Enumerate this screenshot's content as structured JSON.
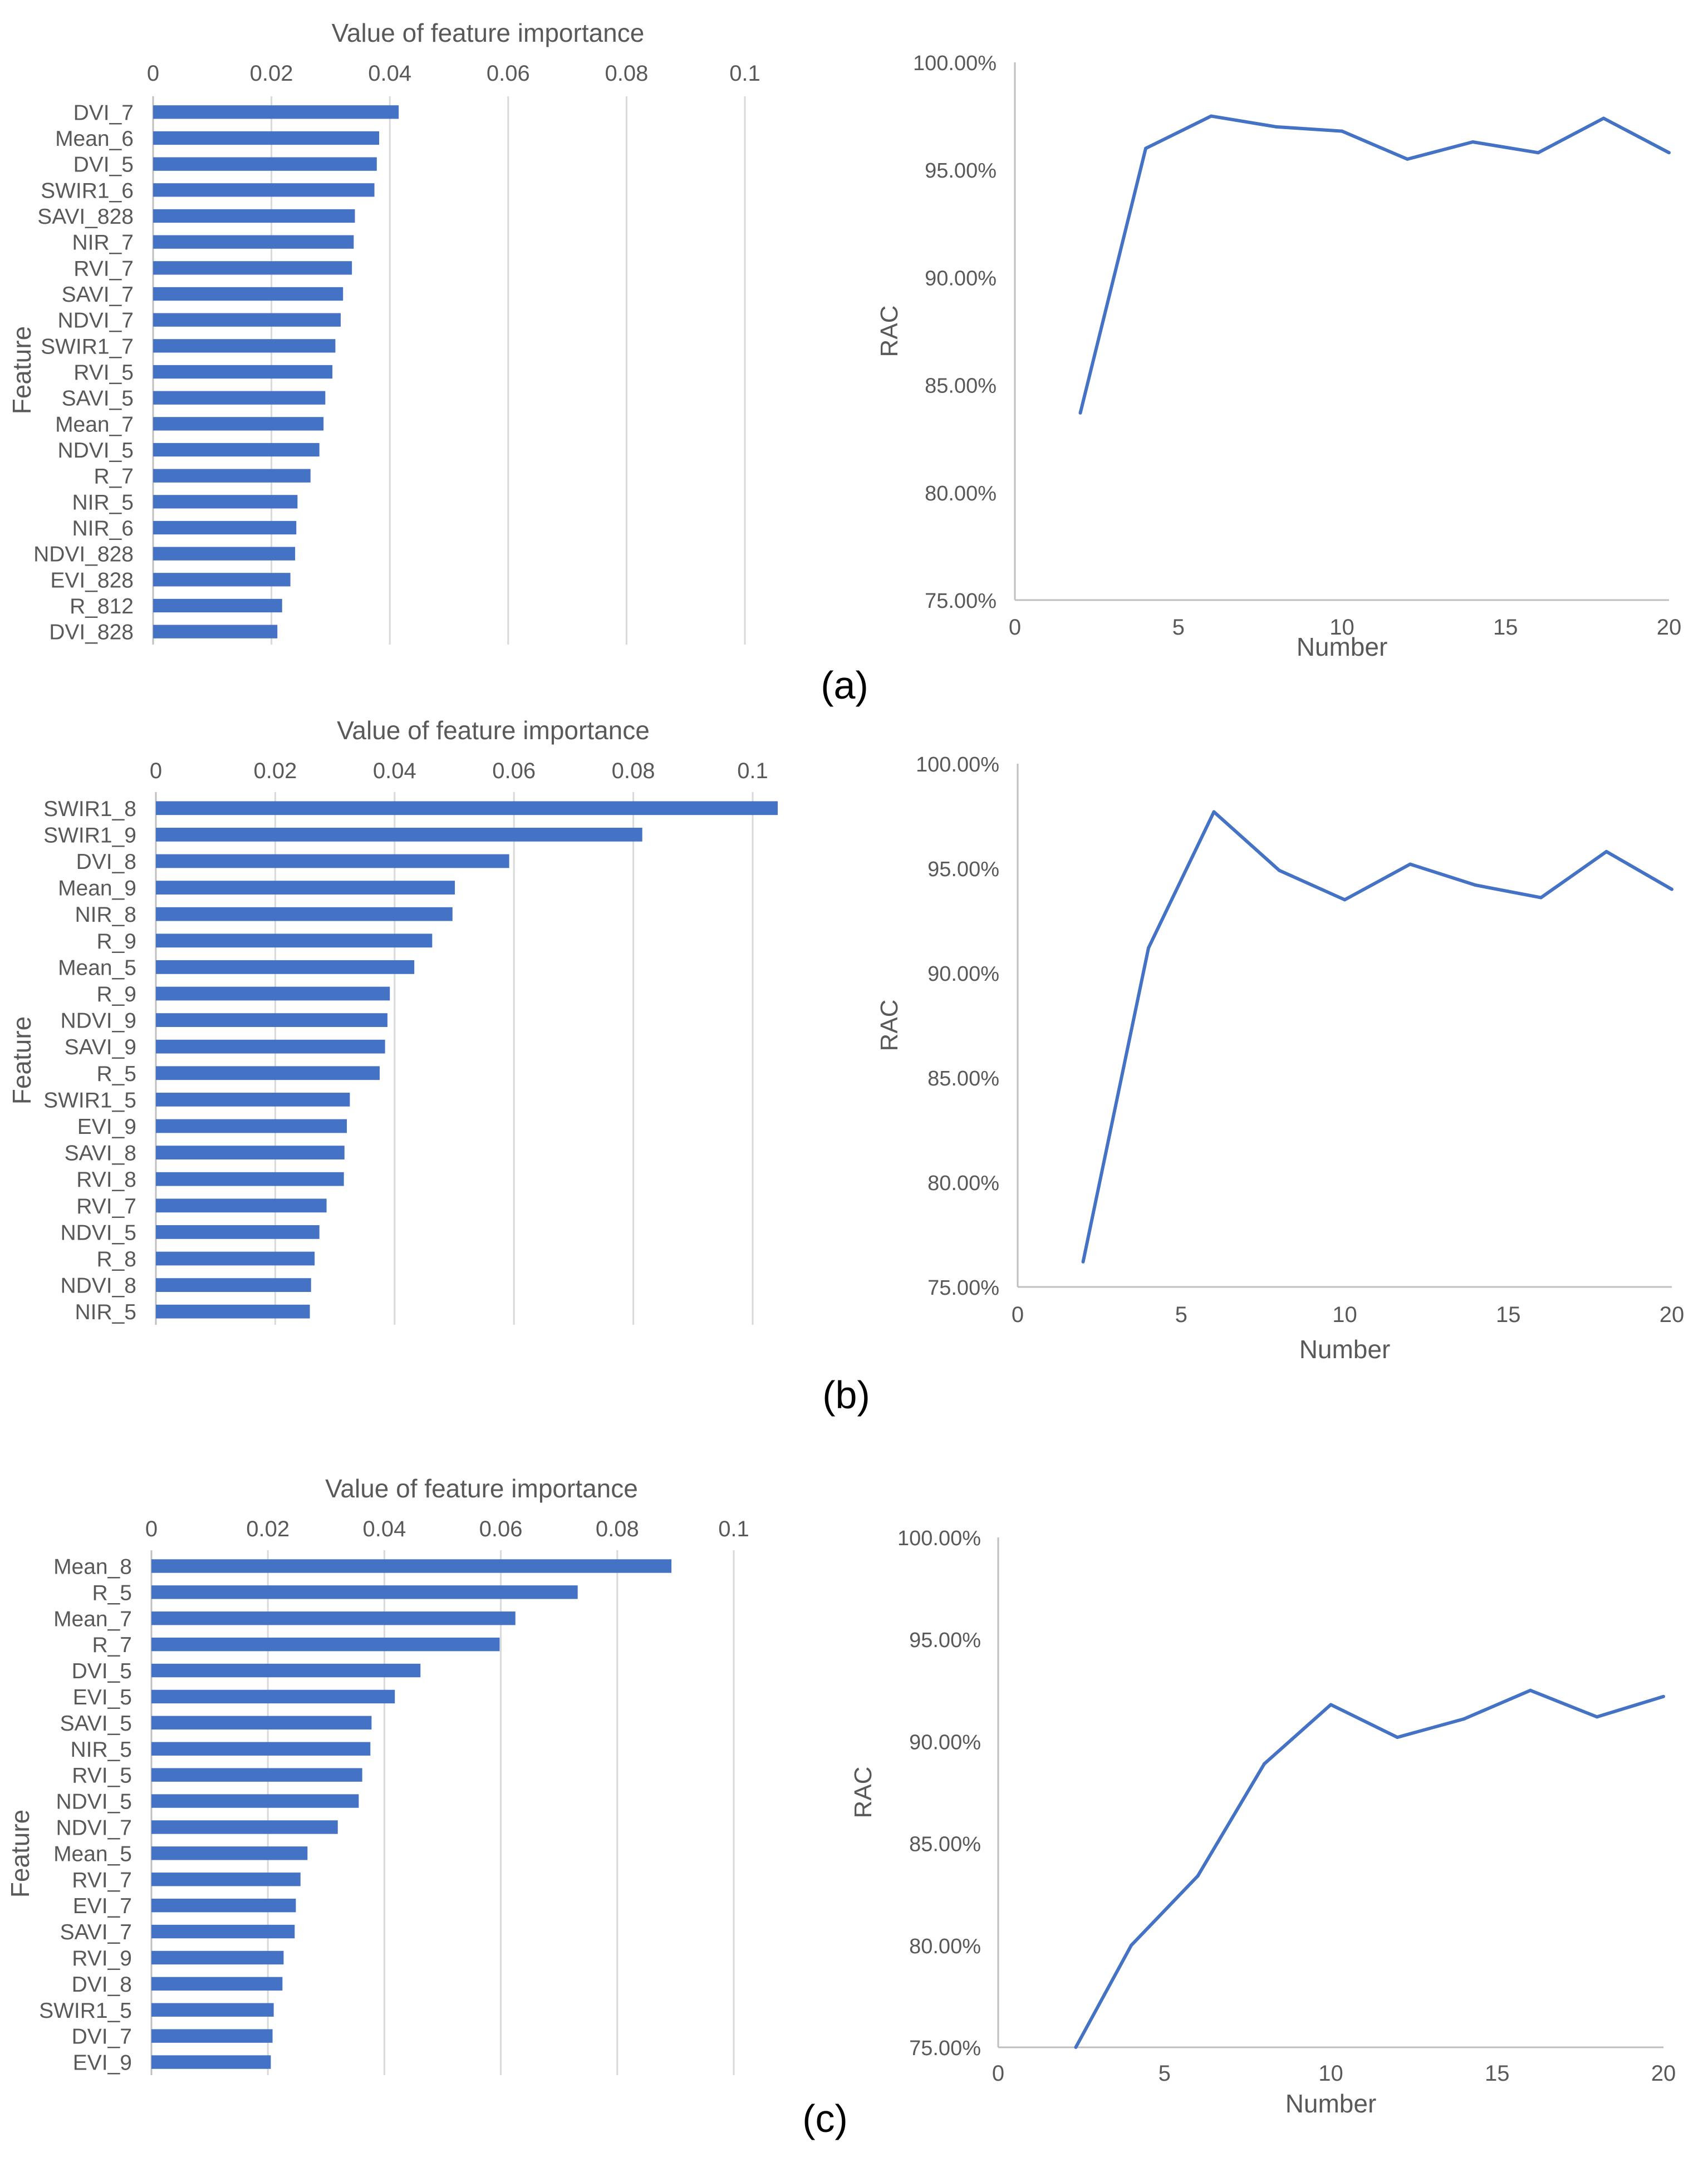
{
  "figure": {
    "panel_labels": [
      "(a)",
      "(b)",
      "(c)"
    ],
    "colors": {
      "bar": "#4472C4",
      "line": "#4472C4",
      "grid": "#D9D9D9",
      "axis": "#BFBFBF",
      "text": "#595959"
    }
  },
  "chart_data": [
    {
      "type": "bar",
      "orientation": "horizontal",
      "panel": "(a)",
      "title": "Value of feature importance",
      "ylabel": "Feature",
      "xlim": [
        0,
        0.1
      ],
      "x_ticks": [
        "0",
        "0.02",
        "0.04",
        "0.06",
        "0.08",
        "0.1"
      ],
      "grid": true,
      "categories": [
        "DVI_7",
        "Mean_6",
        "DVI_5",
        "SWIR1_6",
        "SAVI_828",
        "NIR_7",
        "RVI_7",
        "SAVI_7",
        "NDVI_7",
        "SWIR1_7",
        "RVI_5",
        "SAVI_5",
        "Mean_7",
        "NDVI_5",
        "R_7",
        "NIR_5",
        "NIR_6",
        "NDVI_828",
        "EVI_828",
        "R_812",
        "DVI_828"
      ],
      "values": [
        0.0415,
        0.0382,
        0.0378,
        0.0374,
        0.0341,
        0.0339,
        0.0336,
        0.0321,
        0.0317,
        0.0308,
        0.0303,
        0.0291,
        0.0288,
        0.0281,
        0.0266,
        0.0244,
        0.0242,
        0.024,
        0.0232,
        0.0218,
        0.021
      ]
    },
    {
      "type": "line",
      "panel": "(a)",
      "xlabel": "Number",
      "ylabel": "RAC",
      "xlim": [
        0,
        20
      ],
      "ylim": [
        75,
        100
      ],
      "x_ticks": [
        "0",
        "5",
        "10",
        "15",
        "20"
      ],
      "y_ticks": [
        "75.00%",
        "80.00%",
        "85.00%",
        "90.00%",
        "95.00%",
        "100.00%"
      ],
      "x": [
        2,
        4,
        6,
        8,
        10,
        12,
        14,
        16,
        18,
        20
      ],
      "y": [
        83.7,
        96.0,
        97.5,
        97.0,
        96.8,
        95.5,
        96.3,
        95.8,
        97.4,
        95.8
      ]
    },
    {
      "type": "bar",
      "orientation": "horizontal",
      "panel": "(b)",
      "title": "Value of feature importance",
      "ylabel": "Feature",
      "xlim": [
        0,
        0.1
      ],
      "x_ticks": [
        "0",
        "0.02",
        "0.04",
        "0.06",
        "0.08",
        "0.1"
      ],
      "grid": true,
      "categories": [
        "SWIR1_8",
        "SWIR1_9",
        "DVI_8",
        "Mean_9",
        "NIR_8",
        "R_9",
        "Mean_5",
        "R_9",
        "NDVI_9",
        "SAVI_9",
        "R_5",
        "SWIR1_5",
        "EVI_9",
        "SAVI_8",
        "RVI_8",
        "RVI_7",
        "NDVI_5",
        "R_8",
        "NDVI_8",
        "NIR_5"
      ],
      "values": [
        0.1042,
        0.0815,
        0.0592,
        0.0501,
        0.0497,
        0.0463,
        0.0433,
        0.0392,
        0.0388,
        0.0384,
        0.0375,
        0.0325,
        0.032,
        0.0316,
        0.0315,
        0.0286,
        0.0274,
        0.0266,
        0.026,
        0.0258
      ]
    },
    {
      "type": "line",
      "panel": "(b)",
      "xlabel": "Number",
      "ylabel": "RAC",
      "xlim": [
        0,
        20
      ],
      "ylim": [
        75,
        100
      ],
      "x_ticks": [
        "0",
        "5",
        "10",
        "15",
        "20"
      ],
      "y_ticks": [
        "75.00%",
        "80.00%",
        "85.00%",
        "90.00%",
        "95.00%",
        "100.00%"
      ],
      "x": [
        2,
        4,
        6,
        8,
        10,
        12,
        14,
        16,
        18,
        20
      ],
      "y": [
        76.2,
        91.2,
        97.7,
        94.9,
        93.5,
        95.2,
        94.2,
        93.6,
        95.8,
        94.0
      ]
    },
    {
      "type": "bar",
      "orientation": "horizontal",
      "panel": "(c)",
      "title": "Value of feature importance",
      "ylabel": "Feature",
      "xlim": [
        0,
        0.1
      ],
      "x_ticks": [
        "0",
        "0.02",
        "0.04",
        "0.06",
        "0.08",
        "0.1"
      ],
      "grid": true,
      "categories": [
        "Mean_8",
        "R_5",
        "Mean_7",
        "R_7",
        "DVI_5",
        "EVI_5",
        "SAVI_5",
        "NIR_5",
        "RVI_5",
        "NDVI_5",
        "NDVI_7",
        "Mean_5",
        "RVI_7",
        "EVI_7",
        "SAVI_7",
        "RVI_9",
        "DVI_8",
        "SWIR1_5",
        "DVI_7",
        "EVI_9"
      ],
      "values": [
        0.0893,
        0.0732,
        0.0625,
        0.0598,
        0.0462,
        0.0418,
        0.0378,
        0.0376,
        0.0362,
        0.0356,
        0.032,
        0.0268,
        0.0256,
        0.0248,
        0.0246,
        0.0227,
        0.0225,
        0.021,
        0.0208,
        0.0205
      ]
    },
    {
      "type": "line",
      "panel": "(c)",
      "xlabel": "Number",
      "ylabel": "RAC",
      "xlim": [
        0,
        20
      ],
      "ylim": [
        75,
        100
      ],
      "x_ticks": [
        "0",
        "5",
        "10",
        "15",
        "20"
      ],
      "y_ticks": [
        "75.00%",
        "80.00%",
        "85.00%",
        "90.00%",
        "95.00%",
        "100.00%"
      ],
      "x": [
        2,
        4,
        6,
        8,
        10,
        12,
        14,
        16,
        18,
        20
      ],
      "y": [
        74.0,
        80.0,
        83.4,
        88.9,
        91.8,
        90.2,
        91.1,
        92.5,
        91.2,
        92.2
      ]
    }
  ]
}
